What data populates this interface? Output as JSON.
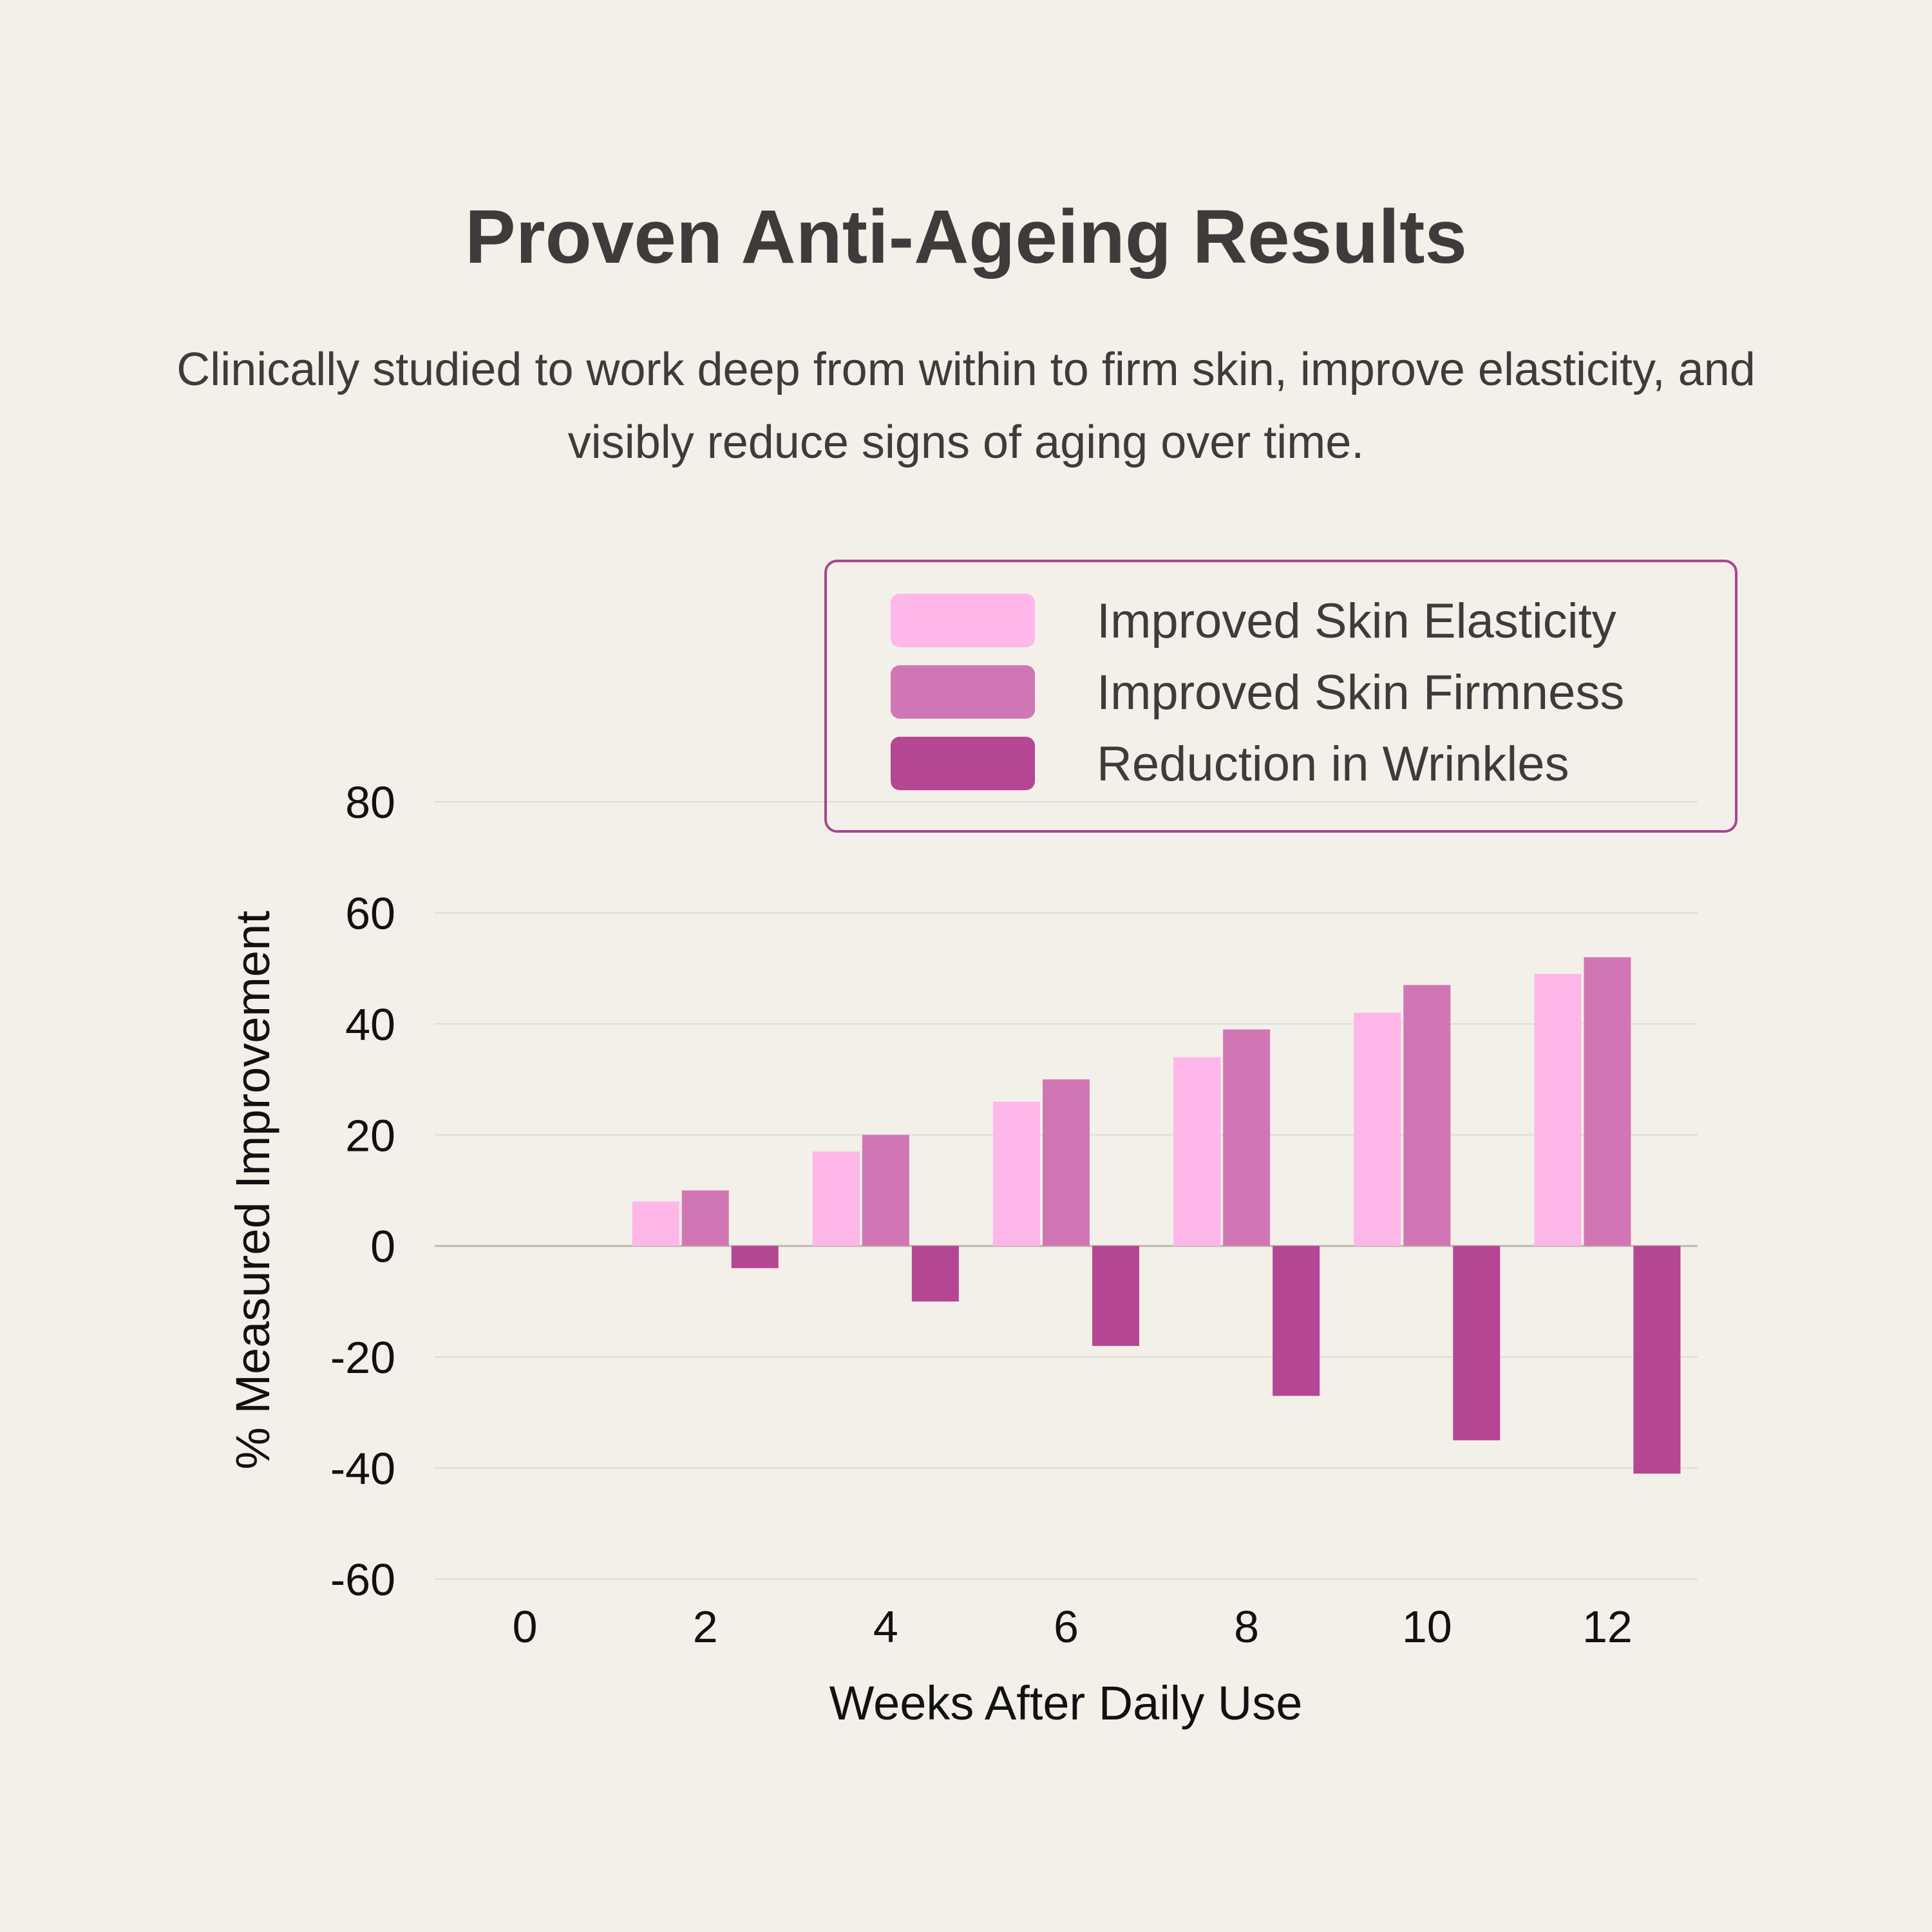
{
  "header": {
    "title": "Proven Anti-Ageing Results",
    "subtitle": "Clinically studied to work deep from within to firm skin, improve elasticity, and visibly reduce signs of aging over time."
  },
  "chart_data": {
    "type": "bar",
    "title": "Proven Anti-Ageing Results",
    "xlabel": "Weeks After Daily Use",
    "ylabel": "% Measured Improvement",
    "categories": [
      "0",
      "2",
      "4",
      "6",
      "8",
      "10",
      "12"
    ],
    "yticks": [
      "80",
      "60",
      "40",
      "20",
      "0",
      "-20",
      "-40",
      "-60"
    ],
    "ylim": [
      -60,
      80
    ],
    "grid": true,
    "legend_position": "top-right",
    "series": [
      {
        "name": "Improved Skin Elasticity",
        "color": "#FFB6E9",
        "values": [
          0,
          8,
          17,
          26,
          34,
          42,
          49
        ]
      },
      {
        "name": "Improved Skin Firmness",
        "color": "#D176B5",
        "values": [
          0,
          10,
          20,
          30,
          39,
          47,
          52
        ]
      },
      {
        "name": "Reduction in Wrinkles",
        "color": "#B54693",
        "values": [
          0,
          -4,
          -10,
          -18,
          -27,
          -35,
          -41
        ]
      }
    ],
    "colors": {
      "background": "#F3EFE9",
      "legend_border": "#A8458F",
      "grid": "#DEDAD4",
      "zero_line": "#BDB8B2"
    }
  }
}
